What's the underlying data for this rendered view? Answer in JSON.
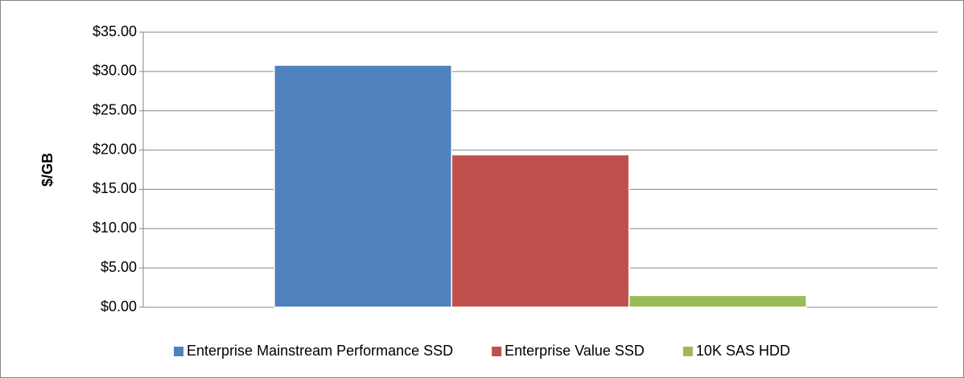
{
  "chart_data": {
    "type": "bar",
    "ylabel": "$/GB",
    "categories": [
      null
    ],
    "series": [
      {
        "name": "Enterprise Mainstream Performance SSD",
        "color": "#4f81bd",
        "values": [
          30.8
        ]
      },
      {
        "name": "Enterprise Value SSD",
        "color": "#c0504d",
        "values": [
          19.4
        ]
      },
      {
        "name": "10K SAS HDD",
        "color": "#9bbb59",
        "values": [
          1.5
        ]
      }
    ],
    "ylim": [
      0,
      35
    ],
    "yticks": [
      {
        "value": 0,
        "label": "$0.00"
      },
      {
        "value": 5,
        "label": "$5.00"
      },
      {
        "value": 10,
        "label": "$10.00"
      },
      {
        "value": 15,
        "label": "$15.00"
      },
      {
        "value": 20,
        "label": "$20.00"
      },
      {
        "value": 25,
        "label": "$25.00"
      },
      {
        "value": 30,
        "label": "$30.00"
      },
      {
        "value": 35,
        "label": "$35.00"
      }
    ],
    "grid": true,
    "legend": "bottom"
  }
}
